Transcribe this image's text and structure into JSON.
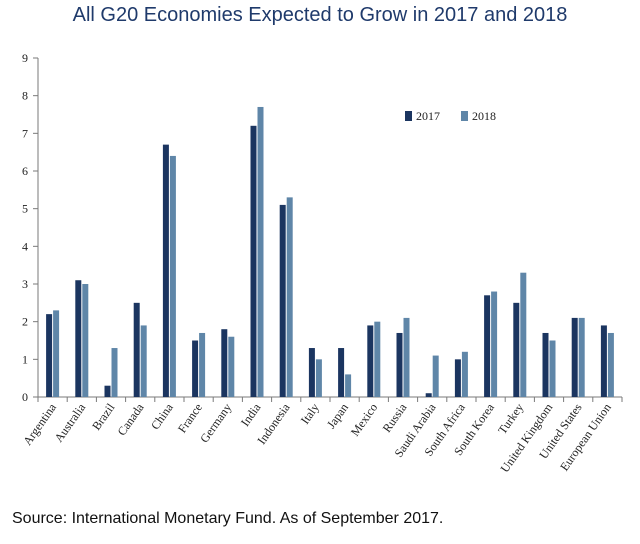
{
  "title": "All G20 Economies Expected to Grow in 2017 and 2018",
  "source": "Source: International Monetary Fund. As of September 2017.",
  "colors": {
    "s2017": "#1b3560",
    "s2018": "#5f86a8",
    "axis": "#7a7a7a",
    "title": "#1f3a6b"
  },
  "chart_data": {
    "type": "bar",
    "title": "All G20 Economies Expected to Grow in 2017 and 2018",
    "xlabel": "",
    "ylabel": "",
    "ylim": [
      0,
      9
    ],
    "yticks": [
      0,
      1,
      2,
      3,
      4,
      5,
      6,
      7,
      8,
      9
    ],
    "grid": false,
    "legend": "top-right",
    "categories": [
      "Argentina",
      "Australia",
      "Brazil",
      "Canada",
      "China",
      "France",
      "Germany",
      "India",
      "Indonesia",
      "Italy",
      "Japan",
      "Mexico",
      "Russia",
      "Saudi Arabia",
      "South Africa",
      "South Korea",
      "Turkey",
      "United Kingdom",
      "United States",
      "European Union"
    ],
    "series": [
      {
        "name": "2017",
        "values": [
          2.2,
          3.1,
          0.3,
          2.5,
          6.7,
          1.5,
          1.8,
          7.2,
          5.1,
          1.3,
          1.3,
          1.9,
          1.7,
          0.1,
          1.0,
          2.7,
          2.5,
          1.7,
          2.1,
          1.9
        ]
      },
      {
        "name": "2018",
        "values": [
          2.3,
          3.0,
          1.3,
          1.9,
          6.4,
          1.7,
          1.6,
          7.7,
          5.3,
          1.0,
          0.6,
          2.0,
          2.1,
          1.1,
          1.2,
          2.8,
          3.3,
          1.5,
          2.1,
          1.7
        ]
      }
    ]
  }
}
